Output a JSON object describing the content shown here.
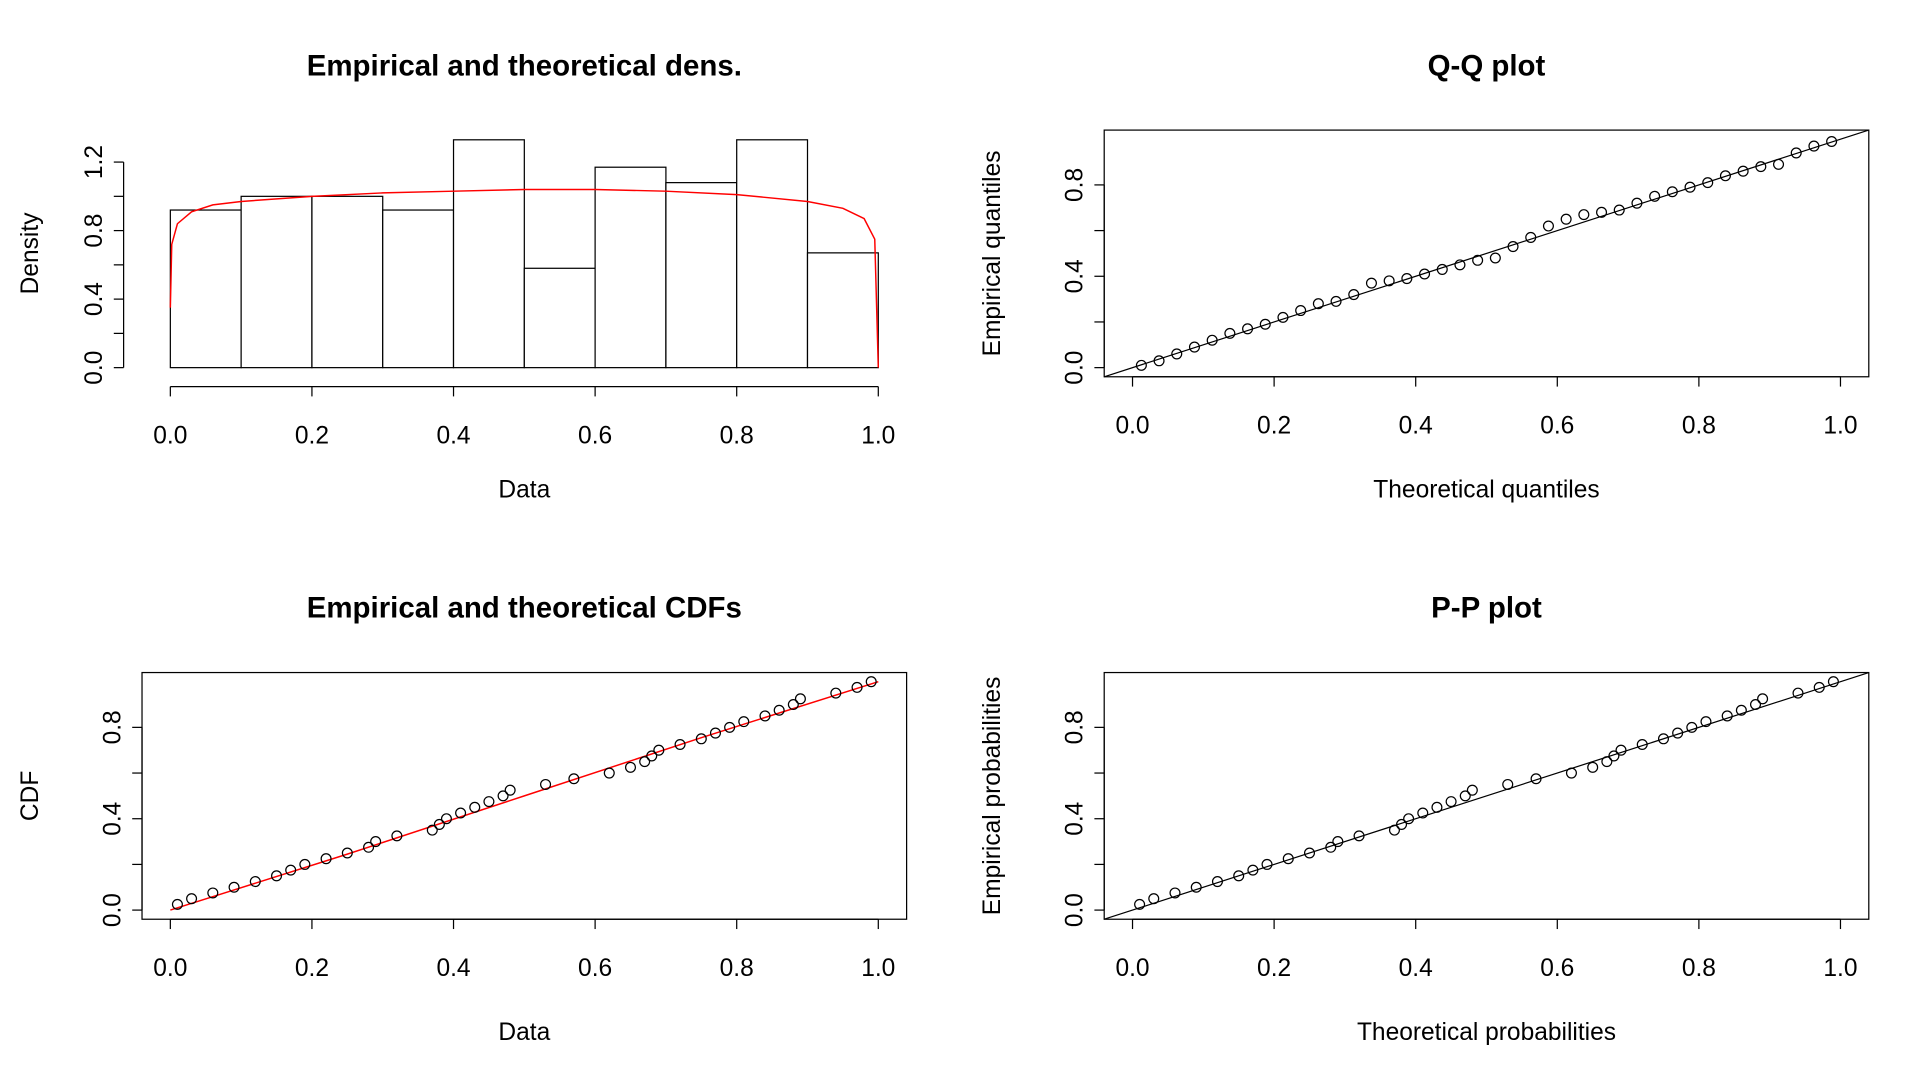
{
  "chart_data": [
    {
      "type": "histogram",
      "title": "Empirical and theoretical dens.",
      "xlabel": "Data",
      "ylabel": "Density",
      "bins": [
        0,
        0.1,
        0.2,
        0.3,
        0.4,
        0.5,
        0.6,
        0.7,
        0.8,
        0.9,
        1.0
      ],
      "values": [
        0.92,
        1.0,
        1.0,
        0.92,
        1.33,
        0.58,
        1.17,
        1.08,
        1.33,
        0.67
      ],
      "color": "#ffffff",
      "curve": {
        "color": "#ff0000",
        "x": [
          0,
          0.002,
          0.01,
          0.03,
          0.06,
          0.1,
          0.2,
          0.3,
          0.4,
          0.5,
          0.6,
          0.7,
          0.8,
          0.9,
          0.95,
          0.98,
          0.995,
          1.0
        ],
        "y": [
          0.35,
          0.72,
          0.84,
          0.91,
          0.95,
          0.97,
          1.0,
          1.02,
          1.03,
          1.04,
          1.04,
          1.03,
          1.01,
          0.97,
          0.93,
          0.87,
          0.75,
          0
        ]
      },
      "xlim": [
        -0.04,
        1.04
      ],
      "ylim": [
        -0.0533,
        1.3867
      ],
      "xticks": [
        {
          "value": 0,
          "label": "0.0"
        },
        0.2,
        0.4,
        0.6,
        0.8,
        {
          "value": 1,
          "label": "1.0"
        }
      ],
      "yticks": [
        {
          "value": 0,
          "label": "0.0"
        },
        0.4,
        0.8,
        1.2
      ],
      "yminor": [
        0.2,
        0.6,
        1.0
      ]
    },
    {
      "type": "scatter",
      "title": "Q-Q plot",
      "xlabel": "Theoretical quantiles",
      "ylabel": "Empirical quantiles",
      "reference_line": true,
      "x": [
        0.0125,
        0.0375,
        0.0625,
        0.0875,
        0.1125,
        0.1375,
        0.1625,
        0.1875,
        0.2125,
        0.2375,
        0.2625,
        0.2875,
        0.3125,
        0.3375,
        0.3625,
        0.3875,
        0.4125,
        0.4375,
        0.4625,
        0.4875,
        0.5125,
        0.5375,
        0.5625,
        0.5875,
        0.6125,
        0.6375,
        0.6625,
        0.6875,
        0.7125,
        0.7375,
        0.7625,
        0.7875,
        0.8125,
        0.8375,
        0.8625,
        0.8875,
        0.9125,
        0.9375,
        0.9625,
        0.9875
      ],
      "y": [
        0.01,
        0.03,
        0.06,
        0.09,
        0.12,
        0.15,
        0.17,
        0.19,
        0.22,
        0.25,
        0.28,
        0.29,
        0.32,
        0.37,
        0.38,
        0.39,
        0.41,
        0.43,
        0.45,
        0.47,
        0.48,
        0.53,
        0.57,
        0.62,
        0.65,
        0.67,
        0.68,
        0.69,
        0.72,
        0.75,
        0.77,
        0.79,
        0.81,
        0.84,
        0.86,
        0.88,
        0.89,
        0.94,
        0.97,
        0.99
      ],
      "xlim": [
        -0.04,
        1.04
      ],
      "ylim": [
        -0.04,
        1.04
      ],
      "xticks": [
        {
          "value": 0,
          "label": "0.0"
        },
        0.2,
        0.4,
        0.6,
        0.8,
        {
          "value": 1,
          "label": "1.0"
        }
      ],
      "yticks": [
        {
          "value": 0,
          "label": "0.0"
        },
        0.4,
        0.8
      ],
      "yminor": [
        0.2,
        0.6
      ]
    },
    {
      "type": "scatter",
      "title": "Empirical and theoretical CDFs",
      "xlabel": "Data",
      "ylabel": "CDF",
      "x": [
        0.01,
        0.03,
        0.06,
        0.09,
        0.12,
        0.15,
        0.17,
        0.19,
        0.22,
        0.25,
        0.28,
        0.29,
        0.32,
        0.37,
        0.38,
        0.39,
        0.41,
        0.43,
        0.45,
        0.47,
        0.48,
        0.53,
        0.57,
        0.62,
        0.65,
        0.67,
        0.68,
        0.69,
        0.72,
        0.75,
        0.77,
        0.79,
        0.81,
        0.84,
        0.86,
        0.88,
        0.89,
        0.94,
        0.97,
        0.99
      ],
      "y": [
        0.025,
        0.05,
        0.075,
        0.1,
        0.125,
        0.15,
        0.175,
        0.2,
        0.225,
        0.25,
        0.275,
        0.3,
        0.325,
        0.35,
        0.375,
        0.4,
        0.425,
        0.45,
        0.475,
        0.5,
        0.525,
        0.55,
        0.575,
        0.6,
        0.625,
        0.65,
        0.675,
        0.7,
        0.725,
        0.75,
        0.775,
        0.8,
        0.825,
        0.85,
        0.875,
        0.9,
        0.925,
        0.95,
        0.975,
        1.0
      ],
      "line": {
        "color": "#ff0000",
        "x": [
          0,
          0.25,
          0.5,
          0.75,
          1.0
        ],
        "y": [
          0,
          0.245,
          0.5,
          0.755,
          1.0
        ]
      },
      "xlim": [
        -0.04,
        1.04
      ],
      "ylim": [
        -0.04,
        1.04
      ],
      "xticks": [
        {
          "value": 0,
          "label": "0.0"
        },
        0.2,
        0.4,
        0.6,
        0.8,
        {
          "value": 1,
          "label": "1.0"
        }
      ],
      "yticks": [
        {
          "value": 0,
          "label": "0.0"
        },
        0.4,
        0.8
      ],
      "yminor": [
        0.2,
        0.6
      ]
    },
    {
      "type": "scatter",
      "title": "P-P plot",
      "xlabel": "Theoretical probabilities",
      "ylabel": "Empirical probabilities",
      "reference_line": true,
      "x": [
        0.01,
        0.03,
        0.06,
        0.09,
        0.12,
        0.15,
        0.17,
        0.19,
        0.22,
        0.25,
        0.28,
        0.29,
        0.32,
        0.37,
        0.38,
        0.39,
        0.41,
        0.43,
        0.45,
        0.47,
        0.48,
        0.53,
        0.57,
        0.62,
        0.65,
        0.67,
        0.68,
        0.69,
        0.72,
        0.75,
        0.77,
        0.79,
        0.81,
        0.84,
        0.86,
        0.88,
        0.89,
        0.94,
        0.97,
        0.99
      ],
      "y": [
        0.025,
        0.05,
        0.075,
        0.1,
        0.125,
        0.15,
        0.175,
        0.2,
        0.225,
        0.25,
        0.275,
        0.3,
        0.325,
        0.35,
        0.375,
        0.4,
        0.425,
        0.45,
        0.475,
        0.5,
        0.525,
        0.55,
        0.575,
        0.6,
        0.625,
        0.65,
        0.675,
        0.7,
        0.725,
        0.75,
        0.775,
        0.8,
        0.825,
        0.85,
        0.875,
        0.9,
        0.925,
        0.95,
        0.975,
        1.0
      ],
      "xlim": [
        -0.04,
        1.04
      ],
      "ylim": [
        -0.04,
        1.04
      ],
      "xticks": [
        {
          "value": 0,
          "label": "0.0"
        },
        0.2,
        0.4,
        0.6,
        0.8,
        {
          "value": 1,
          "label": "1.0"
        }
      ],
      "yticks": [
        {
          "value": 0,
          "label": "0.0"
        },
        0.4,
        0.8
      ],
      "yminor": [
        0.2,
        0.6
      ]
    }
  ]
}
